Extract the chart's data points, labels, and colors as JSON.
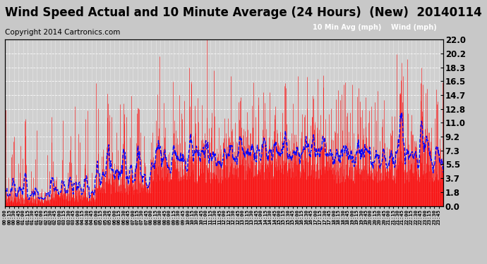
{
  "title": "Wind Speed Actual and 10 Minute Average (24 Hours)  (New)  20140114",
  "copyright": "Copyright 2014 Cartronics.com",
  "yticks": [
    0.0,
    1.8,
    3.7,
    5.5,
    7.3,
    9.2,
    11.0,
    12.8,
    14.7,
    16.5,
    18.3,
    20.2,
    22.0
  ],
  "ylim": [
    0.0,
    22.0
  ],
  "legend_labels": [
    "10 Min Avg (mph)",
    "Wind (mph)"
  ],
  "legend_colors_bg": [
    "#0000cc",
    "#cc0000"
  ],
  "legend_text_color": "#ffffff",
  "wind_color": "#ff0000",
  "avg_color": "#0000ff",
  "bg_color": "#c8c8c8",
  "plot_bg_color": "#d0d0d0",
  "grid_color": "#ffffff",
  "title_fontsize": 12,
  "copyright_fontsize": 7.5
}
